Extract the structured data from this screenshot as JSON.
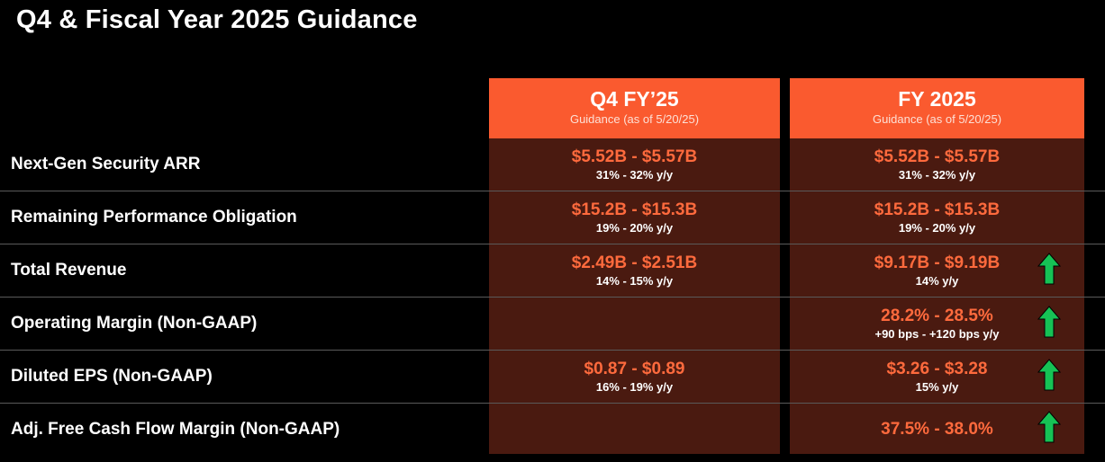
{
  "title": "Q4 & Fiscal Year 2025 Guidance",
  "colors": {
    "header_orange": "#fa5a2f",
    "value_orange": "#ff6a3d",
    "cell_bg": "#4a1a10",
    "arrow_green": "#16c255"
  },
  "columns": [
    {
      "title": "Q4 FY’25",
      "subtitle": "Guidance (as of 5/20/25)"
    },
    {
      "title": "FY 2025",
      "subtitle": "Guidance (as of 5/20/25)"
    }
  ],
  "rows": [
    {
      "label": "Next-Gen Security ARR",
      "q4": {
        "value": "$5.52B - $5.57B",
        "growth": "31% - 32% y/y"
      },
      "fy": {
        "value": "$5.52B - $5.57B",
        "growth": "31% - 32% y/y"
      },
      "raised_icon": ""
    },
    {
      "label": "Remaining Performance Obligation",
      "q4": {
        "value": "$15.2B - $15.3B",
        "growth": "19% - 20% y/y"
      },
      "fy": {
        "value": "$15.2B - $15.3B",
        "growth": "19% - 20% y/y"
      },
      "raised_icon": ""
    },
    {
      "label": "Total Revenue",
      "q4": {
        "value": "$2.49B - $2.51B",
        "growth": "14% - 15% y/y"
      },
      "fy": {
        "value": "$9.17B - $9.19B",
        "growth": "14% y/y"
      },
      "raised_icon": "green-up-arrow-icon"
    },
    {
      "label": "Operating Margin (Non-GAAP)",
      "q4": {
        "value": "",
        "growth": ""
      },
      "fy": {
        "value": "28.2% - 28.5%",
        "growth": "+90 bps - +120 bps y/y"
      },
      "raised_icon": "green-up-arrow-icon"
    },
    {
      "label": "Diluted EPS (Non-GAAP)",
      "q4": {
        "value": "$0.87 - $0.89",
        "growth": "16% - 19% y/y"
      },
      "fy": {
        "value": "$3.26 - $3.28",
        "growth": "15% y/y"
      },
      "raised_icon": "green-up-arrow-icon"
    },
    {
      "label": "Adj. Free Cash Flow Margin (Non-GAAP)",
      "q4": {
        "value": "",
        "growth": ""
      },
      "fy": {
        "value": "37.5% - 38.0%",
        "growth": ""
      },
      "raised_icon": "green-up-arrow-icon"
    }
  ]
}
